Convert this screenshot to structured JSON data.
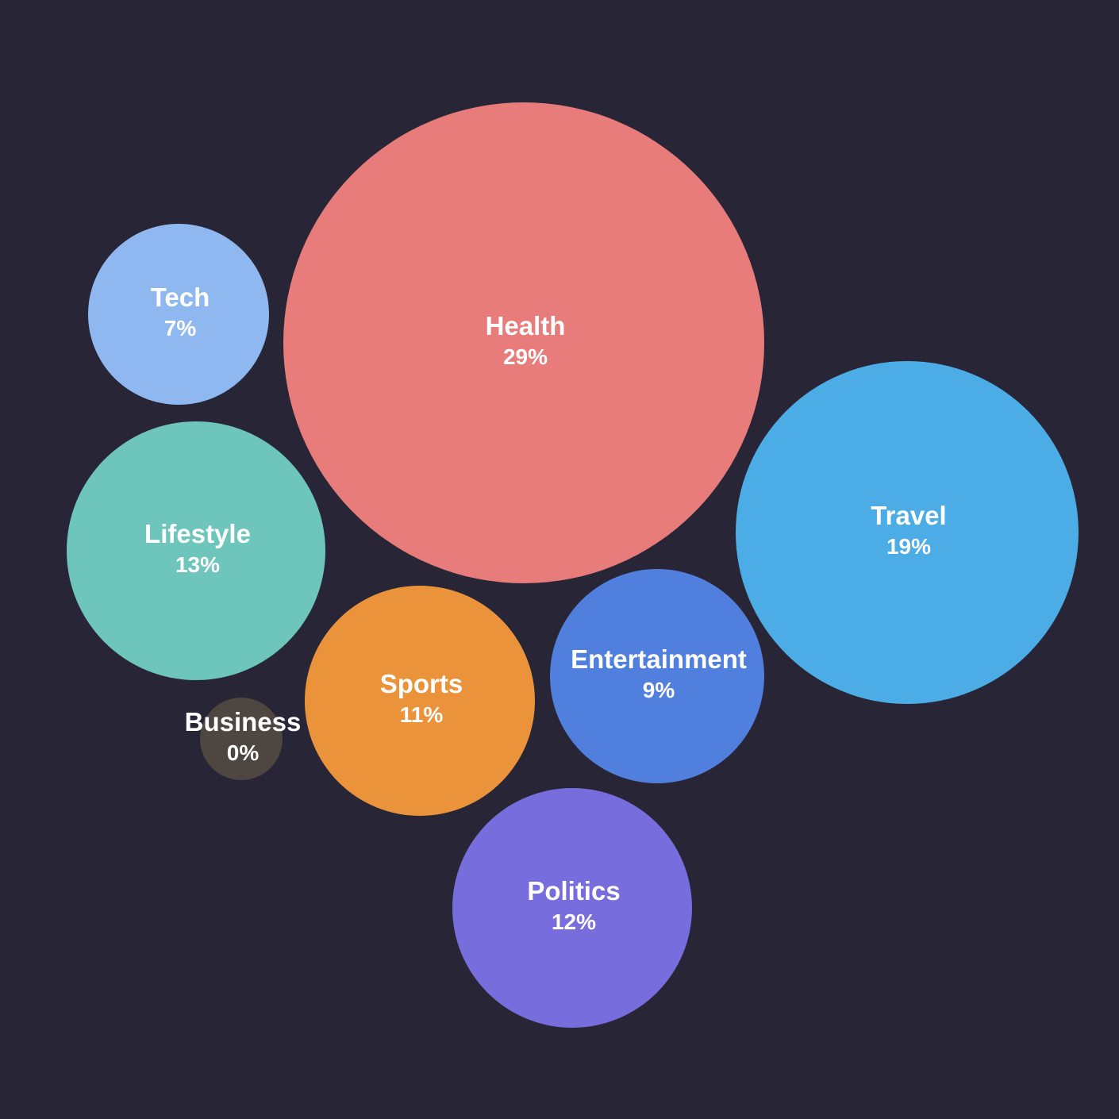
{
  "chart_data": {
    "type": "bubble",
    "background": "#282636",
    "label_color": "#ffffff",
    "unit": "%",
    "series": [
      {
        "name": "Health",
        "value": 29,
        "value_label": "29%",
        "color": "#E87C7B"
      },
      {
        "name": "Travel",
        "value": 19,
        "value_label": "19%",
        "color": "#4CADE6"
      },
      {
        "name": "Lifestyle",
        "value": 13,
        "value_label": "13%",
        "color": "#6DC5BB"
      },
      {
        "name": "Politics",
        "value": 12,
        "value_label": "12%",
        "color": "#786DDC"
      },
      {
        "name": "Sports",
        "value": 11,
        "value_label": "11%",
        "color": "#EA933A"
      },
      {
        "name": "Entertainment",
        "value": 9,
        "value_label": "9%",
        "color": "#507FDE"
      },
      {
        "name": "Tech",
        "value": 7,
        "value_label": "7%",
        "color": "#8FB7F0"
      },
      {
        "name": "Business",
        "value": 0,
        "value_label": "0%",
        "color": "#4E4640"
      }
    ]
  }
}
